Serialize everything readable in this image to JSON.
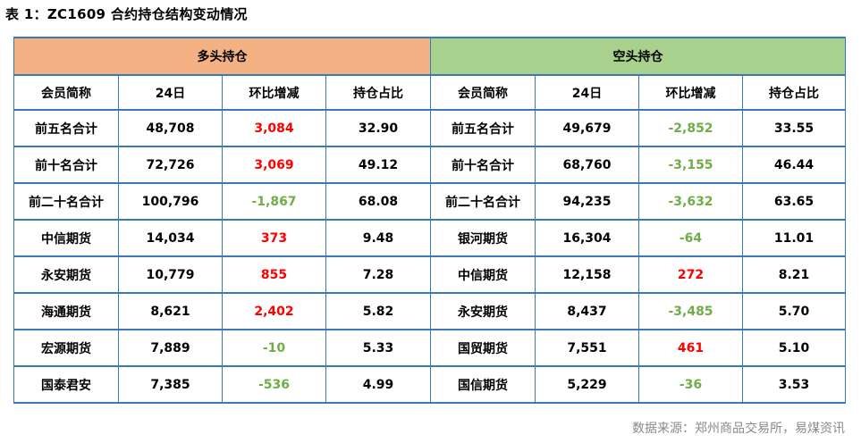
{
  "title": "表 1：ZC1609 合约持仓结构变动情况",
  "groups": {
    "long": "多头持仓",
    "short": "空头持仓"
  },
  "columns": [
    "会员简称",
    "24日",
    "环比增减",
    "持仓占比",
    "会员简称",
    "24日",
    "环比增减",
    "持仓占比"
  ],
  "rows": [
    {
      "long_name": "前五名合计",
      "long_pos": "48,708",
      "long_chg": "3,084",
      "long_pct": "32.90",
      "short_name": "前五名合计",
      "short_pos": "49,679",
      "short_chg": "-2,852",
      "short_pct": "33.55"
    },
    {
      "long_name": "前十名合计",
      "long_pos": "72,726",
      "long_chg": "3,069",
      "long_pct": "49.12",
      "short_name": "前十名合计",
      "short_pos": "68,760",
      "short_chg": "-3,155",
      "short_pct": "46.44"
    },
    {
      "long_name": "前二十名合计",
      "long_pos": "100,796",
      "long_chg": "-1,867",
      "long_pct": "68.08",
      "short_name": "前二十名合计",
      "short_pos": "94,235",
      "short_chg": "-3,632",
      "short_pct": "63.65"
    },
    {
      "long_name": "中信期货",
      "long_pos": "14,034",
      "long_chg": "373",
      "long_pct": "9.48",
      "short_name": "银河期货",
      "short_pos": "16,304",
      "short_chg": "-64",
      "short_pct": "11.01"
    },
    {
      "long_name": "永安期货",
      "long_pos": "10,779",
      "long_chg": "855",
      "long_pct": "7.28",
      "short_name": "中信期货",
      "short_pos": "12,158",
      "short_chg": "272",
      "short_pct": "8.21"
    },
    {
      "long_name": "海通期货",
      "long_pos": "8,621",
      "long_chg": "2,402",
      "long_pct": "5.82",
      "short_name": "永安期货",
      "short_pos": "8,437",
      "short_chg": "-3,485",
      "short_pct": "5.70"
    },
    {
      "long_name": "宏源期货",
      "long_pos": "7,889",
      "long_chg": "-10",
      "long_pct": "5.33",
      "short_name": "国贸期货",
      "short_pos": "7,551",
      "short_chg": "461",
      "short_pct": "5.10"
    },
    {
      "long_name": "国泰君安",
      "long_pos": "7,385",
      "long_chg": "-536",
      "long_pct": "4.99",
      "short_name": "国信期货",
      "short_pos": "5,229",
      "short_chg": "-36",
      "short_pct": "3.53"
    }
  ],
  "source": "数据来源：郑州商品交易所，易煤资讯",
  "colors": {
    "border": "#3a79b8",
    "long_header": "#f4b183",
    "short_header": "#a9d18e",
    "increase": "#ff0000",
    "decrease": "#70ad47"
  }
}
